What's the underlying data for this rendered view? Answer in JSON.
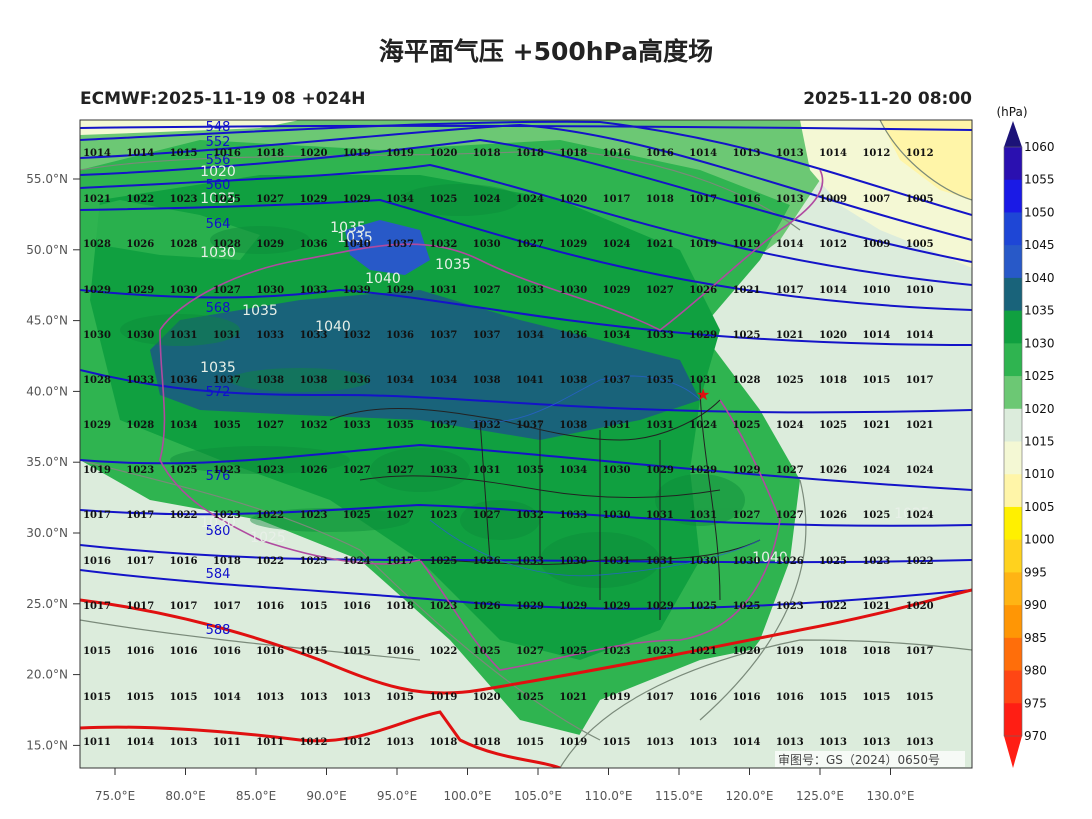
{
  "title": "海平面气压 +500hPa高度场",
  "subtitle_left": "ECMWF:2025-11-19 08 +024H",
  "subtitle_right": "2025-11-20 08:00",
  "map_note": "审图号：GS（2024）0650号",
  "colorbar": {
    "unit": "(hPa)",
    "labels": [
      "1060",
      "1055",
      "1050",
      "1045",
      "1040",
      "1035",
      "1030",
      "1025",
      "1020",
      "1015",
      "1010",
      "1005",
      "1000",
      "995",
      "990",
      "985",
      "980",
      "975",
      "970"
    ],
    "colors": [
      "#1c1378",
      "#2a10b0",
      "#1a1ae6",
      "#1e46d6",
      "#2859c8",
      "#19637a",
      "#10a040",
      "#2fb450",
      "#6cc874",
      "#dcecdc",
      "#f4f8d4",
      "#fff5a8",
      "#fff000",
      "#ffd21e",
      "#ffb414",
      "#ff9605",
      "#ff6e0a",
      "#ff4614",
      "#ff1e14"
    ]
  },
  "axes": {
    "lon_labels": [
      "75.0°E",
      "80.0°E",
      "85.0°E",
      "90.0°E",
      "95.0°E",
      "100.0°E",
      "105.0°E",
      "110.0°E",
      "115.0°E",
      "120.0°E",
      "125.0°E",
      "130.0°E"
    ],
    "lat_labels": [
      "55.0°N",
      "50.0°N",
      "45.0°N",
      "40.0°N",
      "35.0°N",
      "30.0°N",
      "25.0°N",
      "20.0°N",
      "15.0°N"
    ]
  },
  "height_labels": [
    "548",
    "552",
    "556",
    "560",
    "564",
    "568",
    "572",
    "576",
    "580",
    "584",
    "588"
  ],
  "pressure_labels": [
    "1020",
    "1025",
    "1030",
    "1035",
    "1035",
    "1040",
    "1035",
    "1035",
    "1040",
    "1035",
    "1025",
    "1030",
    "1025",
    "1040"
  ],
  "station_rows": [
    [
      "1014",
      "1014",
      "1015",
      "1016",
      "1018",
      "1020",
      "1019",
      "1019",
      "1020",
      "1018",
      "1018",
      "1018",
      "1016",
      "1016",
      "1014",
      "1013",
      "1013",
      "1014",
      "1012",
      "1012"
    ],
    [
      "1021",
      "1022",
      "1023",
      "1025",
      "1027",
      "1029",
      "1029",
      "1034",
      "1025",
      "1024",
      "1024",
      "1020",
      "1017",
      "1018",
      "1017",
      "1016",
      "1013",
      "1009",
      "1007",
      "1005"
    ],
    [
      "1028",
      "1026",
      "1028",
      "1028",
      "1029",
      "1036",
      "1040",
      "1037",
      "1032",
      "1030",
      "1027",
      "1029",
      "1024",
      "1021",
      "1019",
      "1019",
      "1014",
      "1012",
      "1009",
      "1005"
    ],
    [
      "1029",
      "1029",
      "1030",
      "1027",
      "1030",
      "1033",
      "1039",
      "1029",
      "1031",
      "1027",
      "1033",
      "1030",
      "1029",
      "1027",
      "1026",
      "1021",
      "1017",
      "1014",
      "1010",
      "1010"
    ],
    [
      "1030",
      "1030",
      "1031",
      "1031",
      "1033",
      "1033",
      "1032",
      "1036",
      "1037",
      "1037",
      "1034",
      "1036",
      "1034",
      "1033",
      "1029",
      "1025",
      "1021",
      "1020",
      "1014",
      "1014"
    ],
    [
      "1028",
      "1033",
      "1036",
      "1037",
      "1038",
      "1038",
      "1036",
      "1034",
      "1034",
      "1038",
      "1041",
      "1038",
      "1037",
      "1035",
      "1031",
      "1028",
      "1025",
      "1018",
      "1015",
      "1017"
    ],
    [
      "1029",
      "1028",
      "1034",
      "1035",
      "1027",
      "1032",
      "1033",
      "1035",
      "1037",
      "1032",
      "1037",
      "1038",
      "1031",
      "1031",
      "1024",
      "1025",
      "1024",
      "1025",
      "1021",
      "1021"
    ],
    [
      "1019",
      "1023",
      "1025",
      "1023",
      "1023",
      "1026",
      "1027",
      "1027",
      "1033",
      "1031",
      "1035",
      "1034",
      "1030",
      "1029",
      "1029",
      "1029",
      "1027",
      "1026",
      "1024",
      "1024"
    ],
    [
      "1017",
      "1017",
      "1022",
      "1023",
      "1022",
      "1023",
      "1025",
      "1027",
      "1023",
      "1027",
      "1032",
      "1033",
      "1030",
      "1031",
      "1031",
      "1027",
      "1027",
      "1026",
      "1025",
      "1024"
    ],
    [
      "1016",
      "1017",
      "1016",
      "1018",
      "1022",
      "1023",
      "1024",
      "1017",
      "1025",
      "1026",
      "1033",
      "1030",
      "1031",
      "1031",
      "1030",
      "1030",
      "1026",
      "1025",
      "1023",
      "1022"
    ],
    [
      "1017",
      "1017",
      "1017",
      "1017",
      "1016",
      "1015",
      "1016",
      "1018",
      "1023",
      "1026",
      "1029",
      "1029",
      "1029",
      "1029",
      "1025",
      "1025",
      "1023",
      "1022",
      "1021",
      "1020"
    ],
    [
      "1015",
      "1016",
      "1016",
      "1016",
      "1016",
      "1015",
      "1015",
      "1016",
      "1022",
      "1025",
      "1027",
      "1025",
      "1023",
      "1023",
      "1021",
      "1020",
      "1019",
      "1018",
      "1018",
      "1017"
    ],
    [
      "1015",
      "1015",
      "1015",
      "1014",
      "1013",
      "1013",
      "1013",
      "1015",
      "1019",
      "1020",
      "1025",
      "1021",
      "1019",
      "1017",
      "1016",
      "1016",
      "1016",
      "1015",
      "1015",
      "1015"
    ],
    [
      "1011",
      "1014",
      "1013",
      "1011",
      "1011",
      "1012",
      "1012",
      "1013",
      "1018",
      "1018",
      "1015",
      "1019",
      "1015",
      "1013",
      "1013",
      "1014",
      "1013",
      "1013",
      "1013",
      "1013"
    ]
  ]
}
